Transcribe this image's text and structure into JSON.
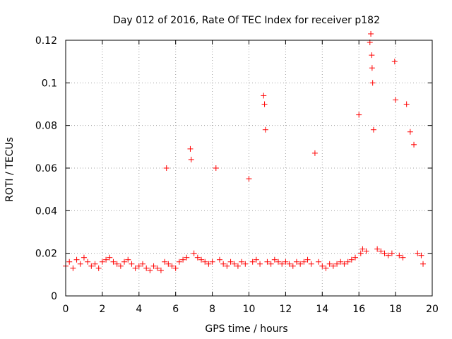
{
  "chart_data": {
    "type": "scatter",
    "title": "Day 012 of 2016, Rate Of TEC Index for receiver p182",
    "xlabel": "GPS time / hours",
    "ylabel": "ROTI / TECUs",
    "xlim": [
      0,
      20
    ],
    "ylim": [
      0,
      0.12
    ],
    "x_ticks": [
      0,
      2,
      4,
      6,
      8,
      10,
      12,
      14,
      16,
      18,
      20
    ],
    "y_ticks": [
      0,
      0.02,
      0.04,
      0.06,
      0.08,
      0.1,
      0.12
    ],
    "x_tick_labels": [
      "0",
      "2",
      "4",
      "6",
      "8",
      "10",
      "12",
      "14",
      "16",
      "18",
      "20"
    ],
    "y_tick_labels": [
      "0",
      "0.02",
      "0.04",
      "0.06",
      "0.08",
      "0.1",
      "0.12"
    ],
    "grid": true,
    "marker": "+",
    "series": [
      {
        "name": "ROTI",
        "color": "#ff0000",
        "x": [
          0.0,
          0.2,
          0.4,
          0.6,
          0.8,
          1.0,
          1.2,
          1.4,
          1.6,
          1.8,
          2.0,
          2.2,
          2.4,
          2.6,
          2.8,
          3.0,
          3.2,
          3.4,
          3.6,
          3.8,
          4.0,
          4.2,
          4.4,
          4.6,
          4.8,
          5.0,
          5.2,
          5.4,
          5.5,
          5.6,
          5.8,
          6.0,
          6.2,
          6.4,
          6.6,
          6.8,
          6.85,
          7.0,
          7.2,
          7.4,
          7.6,
          7.8,
          8.0,
          8.2,
          8.4,
          8.6,
          8.8,
          9.0,
          9.2,
          9.4,
          9.6,
          9.8,
          10.0,
          10.2,
          10.4,
          10.6,
          10.8,
          10.85,
          10.9,
          11.0,
          11.2,
          11.4,
          11.6,
          11.8,
          12.0,
          12.2,
          12.4,
          12.6,
          12.8,
          13.0,
          13.2,
          13.4,
          13.6,
          13.8,
          14.0,
          14.2,
          14.4,
          14.6,
          14.8,
          15.0,
          15.2,
          15.4,
          15.6,
          15.8,
          16.0,
          16.1,
          16.2,
          16.4,
          16.6,
          16.65,
          16.7,
          16.72,
          16.75,
          16.8,
          17.0,
          17.2,
          17.4,
          17.6,
          17.8,
          17.95,
          18.0,
          18.2,
          18.4,
          18.6,
          18.8,
          19.0,
          19.2,
          19.4,
          19.5
        ],
        "y": [
          0.014,
          0.016,
          0.013,
          0.017,
          0.015,
          0.018,
          0.016,
          0.014,
          0.015,
          0.013,
          0.016,
          0.017,
          0.018,
          0.016,
          0.015,
          0.014,
          0.016,
          0.017,
          0.015,
          0.013,
          0.014,
          0.015,
          0.013,
          0.012,
          0.014,
          0.013,
          0.012,
          0.016,
          0.06,
          0.015,
          0.014,
          0.013,
          0.016,
          0.017,
          0.018,
          0.069,
          0.064,
          0.02,
          0.018,
          0.017,
          0.016,
          0.015,
          0.016,
          0.06,
          0.017,
          0.015,
          0.014,
          0.016,
          0.015,
          0.014,
          0.016,
          0.015,
          0.055,
          0.016,
          0.017,
          0.015,
          0.094,
          0.09,
          0.078,
          0.016,
          0.015,
          0.017,
          0.016,
          0.015,
          0.016,
          0.015,
          0.014,
          0.016,
          0.015,
          0.016,
          0.017,
          0.015,
          0.067,
          0.016,
          0.014,
          0.013,
          0.015,
          0.014,
          0.015,
          0.016,
          0.015,
          0.016,
          0.017,
          0.018,
          0.085,
          0.02,
          0.022,
          0.021,
          0.119,
          0.123,
          0.113,
          0.107,
          0.1,
          0.078,
          0.022,
          0.021,
          0.02,
          0.019,
          0.02,
          0.11,
          0.092,
          0.019,
          0.018,
          0.09,
          0.077,
          0.071,
          0.02,
          0.019,
          0.015
        ]
      }
    ]
  }
}
